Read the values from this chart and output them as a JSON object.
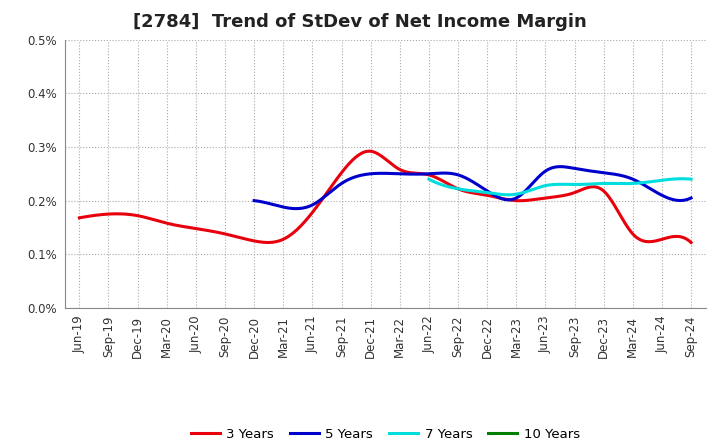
{
  "title": "[2784]  Trend of StDev of Net Income Margin",
  "ylim": [
    0.0,
    0.005
  ],
  "yticks": [
    0.0,
    0.001,
    0.002,
    0.003,
    0.004,
    0.005
  ],
  "ytick_labels": [
    "0.0%",
    "0.1%",
    "0.2%",
    "0.3%",
    "0.4%",
    "0.5%"
  ],
  "x_labels": [
    "Jun-19",
    "Sep-19",
    "Dec-19",
    "Mar-20",
    "Jun-20",
    "Sep-20",
    "Dec-20",
    "Mar-21",
    "Jun-21",
    "Sep-21",
    "Dec-21",
    "Mar-22",
    "Jun-22",
    "Sep-22",
    "Dec-22",
    "Mar-23",
    "Jun-23",
    "Sep-23",
    "Dec-23",
    "Mar-24",
    "Jun-24",
    "Sep-24"
  ],
  "series_3y": [
    0.00168,
    0.00175,
    0.00172,
    0.00158,
    0.00148,
    0.00138,
    0.00125,
    0.00128,
    0.00178,
    0.00252,
    0.00292,
    0.00258,
    0.00248,
    0.00222,
    0.0021,
    0.002,
    0.00205,
    0.00215,
    0.00218,
    0.00138,
    0.00128,
    0.00122
  ],
  "series_5y": [
    null,
    null,
    null,
    null,
    null,
    null,
    0.002,
    0.00188,
    0.00192,
    0.00232,
    0.0025,
    0.0025,
    0.0025,
    0.00248,
    0.00218,
    0.00205,
    0.00255,
    0.0026,
    0.00252,
    0.0024,
    0.0021,
    0.00205
  ],
  "series_7y": [
    null,
    null,
    null,
    null,
    null,
    null,
    null,
    null,
    null,
    null,
    null,
    null,
    0.0024,
    0.00222,
    0.00215,
    0.00212,
    0.00228,
    0.0023,
    0.00232,
    0.00232,
    0.00238,
    0.0024
  ],
  "series_10y": [
    null,
    null,
    null,
    null,
    null,
    null,
    null,
    null,
    null,
    null,
    null,
    null,
    null,
    null,
    null,
    null,
    null,
    null,
    null,
    null,
    null,
    null
  ],
  "color_3y": "#e8000d",
  "color_5y": "#0000cc",
  "color_7y": "#00dddd",
  "color_10y": "#008000",
  "legend_labels": [
    "3 Years",
    "5 Years",
    "7 Years",
    "10 Years"
  ],
  "background_color": "#ffffff",
  "grid_color": "#aaaaaa",
  "title_fontsize": 13,
  "axis_fontsize": 8.5,
  "legend_fontsize": 9.5,
  "line_width": 2.2
}
